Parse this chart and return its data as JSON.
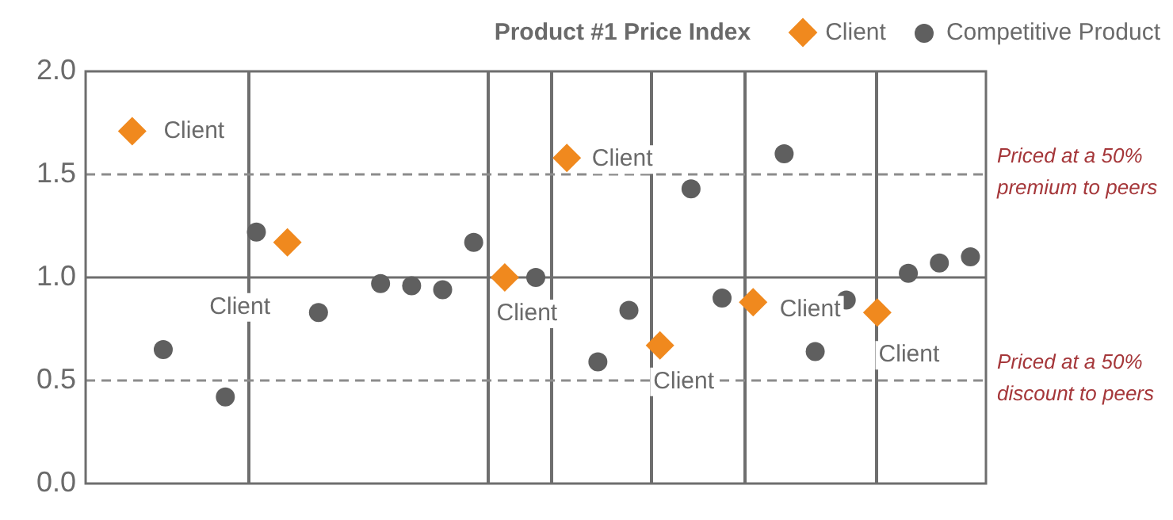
{
  "chart_data": {
    "type": "scatter",
    "title": "Product #1 Price Index",
    "legend": "top right",
    "grid": false,
    "tick_labels": "y",
    "categories": [
      null,
      null,
      null,
      null,
      null,
      null,
      null,
      null,
      null,
      null,
      null,
      null,
      null,
      null,
      null,
      null,
      null,
      null,
      null,
      null,
      null,
      null,
      null,
      null,
      null,
      null,
      null,
      null,
      null
    ],
    "ylim": [
      0,
      2
    ],
    "yticks": [
      {
        "value": 0,
        "label": "0.0"
      },
      {
        "value": 0.5,
        "label": "0.5"
      },
      {
        "value": 1,
        "label": "1.0"
      },
      {
        "value": 1.5,
        "label": "1.5"
      },
      {
        "value": 2,
        "label": "2.0"
      }
    ],
    "series": [
      {
        "name": "Client",
        "color": "#f0891e",
        "marker": "diamond",
        "values": [
          null,
          1.71,
          null,
          null,
          null,
          null,
          1.17,
          null,
          null,
          null,
          null,
          null,
          null,
          1.0,
          null,
          1.58,
          null,
          null,
          0.67,
          null,
          null,
          0.88,
          null,
          null,
          null,
          0.83,
          null,
          null,
          null
        ]
      },
      {
        "name": "Competitive Product",
        "color": "#5f5f5f",
        "marker": "circle",
        "values": [
          null,
          null,
          0.65,
          null,
          0.42,
          1.22,
          null,
          0.83,
          null,
          0.97,
          0.96,
          0.94,
          1.17,
          null,
          1.0,
          null,
          0.59,
          0.84,
          null,
          1.43,
          0.9,
          null,
          1.6,
          0.64,
          0.89,
          null,
          1.02,
          1.07,
          1.1
        ]
      }
    ],
    "ref_lines": [
      {
        "axis": "y",
        "value": 1.5,
        "label": "Priced at a 50% premium to peers",
        "line_style": "dashed",
        "color": "#8c8c8c"
      },
      {
        "axis": "y",
        "value": 0.5,
        "label": "Priced at a 50% discount to peers",
        "line_style": "dashed",
        "color": "#8c8c8c"
      },
      {
        "axis": "y",
        "value": 1,
        "line_style": "solid",
        "color": "#6e6e6e"
      }
    ],
    "annotations": [
      "Client",
      "Client",
      "Client",
      "Client",
      "Client",
      "Client",
      "Client"
    ]
  }
}
